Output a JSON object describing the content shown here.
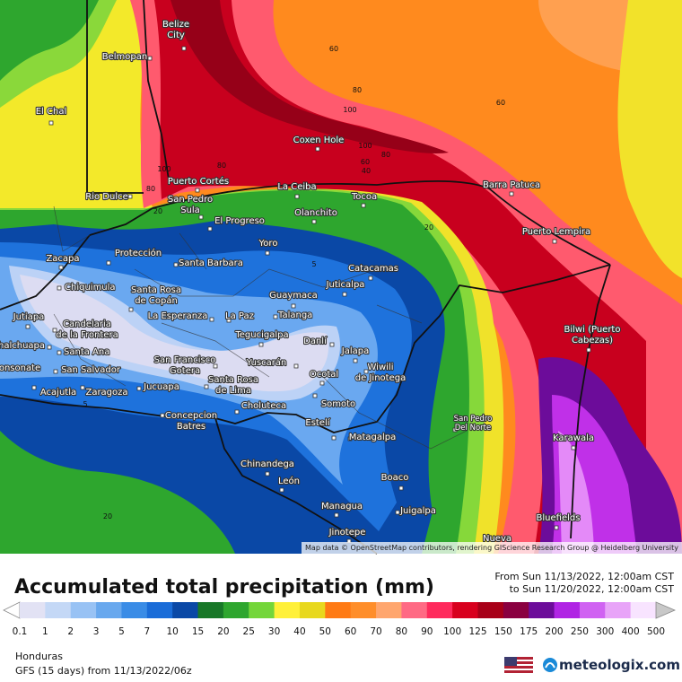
{
  "map": {
    "labels": [
      [
        "Belize",
        "City"
      ],
      [
        "Belmopan"
      ],
      [
        "El Chal"
      ],
      [
        "Coxen Hole"
      ],
      [
        "Puerto Cortés"
      ],
      [
        "Rio Dulce"
      ],
      [
        "San Pedro",
        "Sula"
      ],
      [
        "La Ceiba"
      ],
      [
        "Tocoa"
      ],
      [
        "El Progreso"
      ],
      [
        "Olanchito"
      ],
      [
        "Barra Patuca"
      ],
      [
        "Puerto Lempira"
      ],
      [
        "Zacapa"
      ],
      [
        "Protección"
      ],
      [
        "Yoro"
      ],
      [
        "Santa Barbara"
      ],
      [
        "Catacamas"
      ],
      [
        "Chiquimula"
      ],
      [
        "Santa Rosa",
        "de Copán"
      ],
      [
        "Juticalpa"
      ],
      [
        "Guaymaca"
      ],
      [
        "Jutiapa"
      ],
      [
        "Candelaria",
        "de la Frontera"
      ],
      [
        "La Esperanza"
      ],
      [
        "La Paz"
      ],
      [
        "Talanga"
      ],
      [
        "Bilwi (Puerto",
        "Cabezas)"
      ],
      [
        "halchuapa"
      ],
      [
        "Santa Ana"
      ],
      [
        "Tegucigalpa"
      ],
      [
        "Danlí"
      ],
      [
        "Jalapa"
      ],
      [
        "onsonate"
      ],
      [
        "San Salvador"
      ],
      [
        "San Francisco",
        "Gotera"
      ],
      [
        "Yuscarán"
      ],
      [
        "Wiwili",
        "de Jinotega"
      ],
      [
        "Acajutla"
      ],
      [
        "Zaragoza"
      ],
      [
        "Jucuapa"
      ],
      [
        "Santa Rosa",
        "de Lima"
      ],
      [
        "Ocotal"
      ],
      [
        "Somoto"
      ],
      [
        "Concepcion",
        "Batres"
      ],
      [
        "Choluteca"
      ],
      [
        "Estelí"
      ],
      [
        "San Pedro",
        "Del Norte"
      ],
      [
        "Karawala"
      ],
      [
        "Matagalpa"
      ],
      [
        "Chinandega"
      ],
      [
        "Boaco"
      ],
      [
        "León"
      ],
      [
        "Managua"
      ],
      [
        "Juigalpa"
      ],
      [
        "Bluefields"
      ],
      [
        "Jinotepe"
      ],
      [
        "Nueva"
      ]
    ],
    "contour_labels": [
      60,
      80,
      100,
      60,
      100,
      80,
      60,
      40,
      100,
      80,
      80,
      20,
      5,
      5,
      20,
      20
    ],
    "attribution": "Map data © OpenStreetMap contributors, rendering GIScience Research Group @ Heidelberg University"
  },
  "legend": {
    "title": "Accumulated total precipitation (mm)",
    "from": "From Sun 11/13/2022, 12:00am CST",
    "to": "to Sun 11/20/2022, 12:00am CST",
    "ticks": [
      0.1,
      1,
      2,
      3,
      5,
      7,
      10,
      15,
      20,
      25,
      30,
      40,
      50,
      60,
      70,
      80,
      90,
      100,
      125,
      150,
      175,
      200,
      250,
      300,
      400,
      500
    ],
    "colors": [
      "#ffffff",
      "#e2e2f4",
      "#c4d8f6",
      "#98c2f4",
      "#68a8ee",
      "#3a8ce6",
      "#1a6cd8",
      "#0a48a6",
      "#187828",
      "#2ea62e",
      "#74d63a",
      "#fff03a",
      "#e8d81e",
      "#ff7a14",
      "#ff8e2a",
      "#ffa66e",
      "#ff6a84",
      "#ff2a5c",
      "#d8001e",
      "#a80018",
      "#8a0040",
      "#6c0c9a",
      "#b024e4",
      "#d062f2",
      "#e8a4f8",
      "#f8e4ff",
      "#c8c8c8"
    ]
  },
  "footer": {
    "region": "Honduras",
    "model": "GFS (15 days) from 11/13/2022/06z",
    "brand": "meteologix.com"
  }
}
